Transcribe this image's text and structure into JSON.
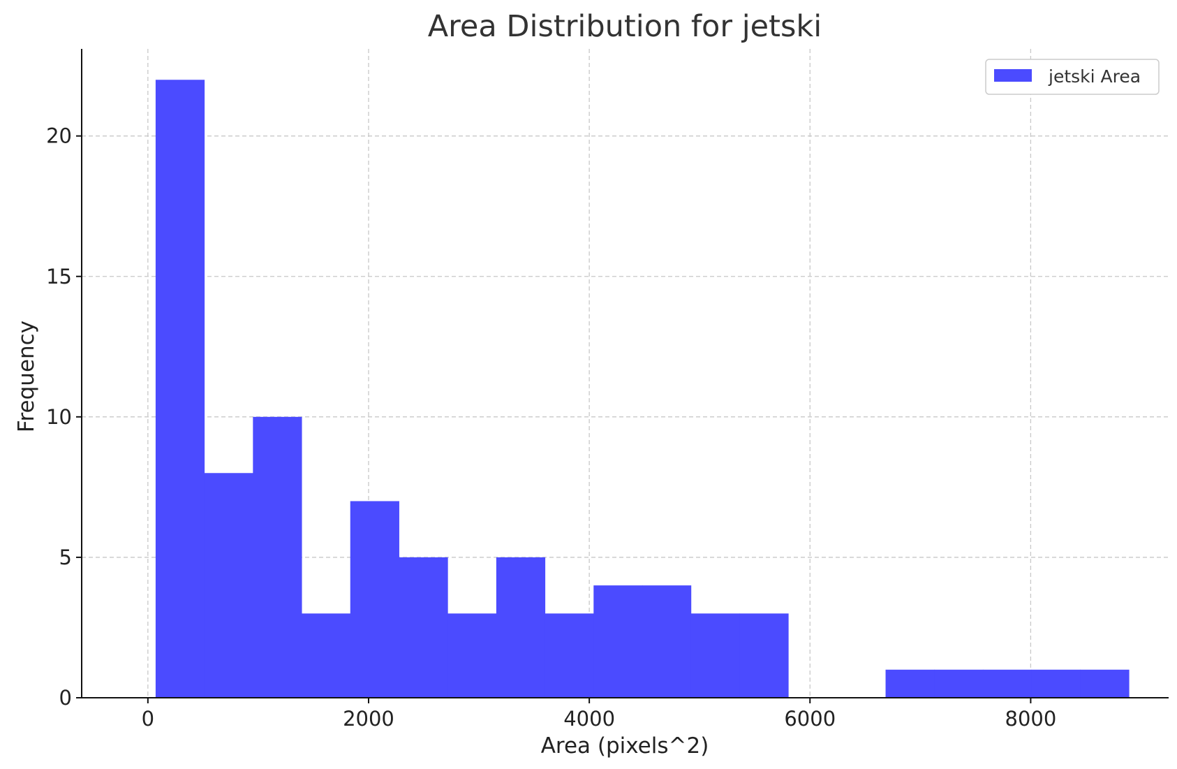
{
  "chart_data": {
    "type": "bar",
    "title": "Area Distribution for jetski",
    "xlabel": "Area (pixels^2)",
    "ylabel": "Frequency",
    "xlim": [
      -600,
      9250
    ],
    "ylim": [
      0,
      23.1
    ],
    "xticks": [
      0,
      2000,
      4000,
      6000,
      8000
    ],
    "yticks": [
      0,
      5,
      10,
      15,
      20
    ],
    "grid": true,
    "legend_position": "top-right",
    "color": "#4B4BFF",
    "series": [
      {
        "name": "jetski Area",
        "bins": [
          {
            "x0": 70,
            "x1": 511,
            "count": 22
          },
          {
            "x0": 511,
            "x1": 952,
            "count": 8
          },
          {
            "x0": 952,
            "x1": 1393,
            "count": 10
          },
          {
            "x0": 1393,
            "x1": 1834,
            "count": 3
          },
          {
            "x0": 1834,
            "x1": 2275,
            "count": 7
          },
          {
            "x0": 2275,
            "x1": 2716,
            "count": 5
          },
          {
            "x0": 2716,
            "x1": 3157,
            "count": 3
          },
          {
            "x0": 3157,
            "x1": 3598,
            "count": 5
          },
          {
            "x0": 3598,
            "x1": 4039,
            "count": 3
          },
          {
            "x0": 4039,
            "x1": 4480,
            "count": 4
          },
          {
            "x0": 4480,
            "x1": 4921,
            "count": 4
          },
          {
            "x0": 4921,
            "x1": 5362,
            "count": 3
          },
          {
            "x0": 5362,
            "x1": 5803,
            "count": 3
          },
          {
            "x0": 5803,
            "x1": 6244,
            "count": 0
          },
          {
            "x0": 6244,
            "x1": 6685,
            "count": 0
          },
          {
            "x0": 6685,
            "x1": 7126,
            "count": 1
          },
          {
            "x0": 7126,
            "x1": 7567,
            "count": 1
          },
          {
            "x0": 7567,
            "x1": 8008,
            "count": 1
          },
          {
            "x0": 8008,
            "x1": 8449,
            "count": 1
          },
          {
            "x0": 8449,
            "x1": 8890,
            "count": 1
          }
        ]
      }
    ]
  }
}
